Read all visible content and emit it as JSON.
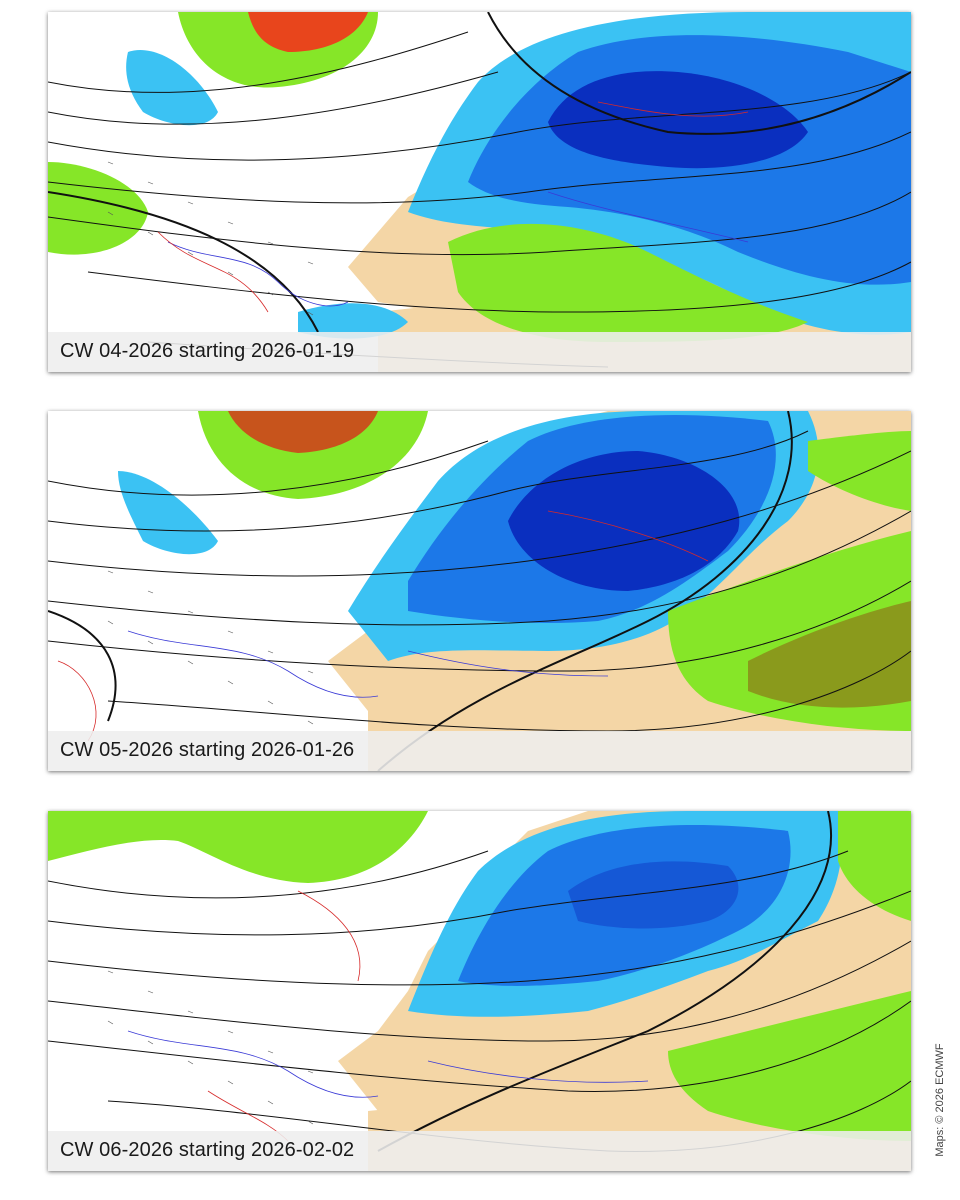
{
  "panels": [
    {
      "id": "cw04",
      "caption": "CW 04-2026 starting 2026-01-19"
    },
    {
      "id": "cw05",
      "caption": "CW 05-2026 starting 2026-01-26"
    },
    {
      "id": "cw06",
      "caption": "CW 06-2026 starting 2026-02-02"
    }
  ],
  "credit": "Maps: © 2026 ECMWF",
  "colors": {
    "strong_negative": "#0a2fbf",
    "negative": "#1c78e8",
    "weak_negative": "#3bc2f3",
    "positive": "#86e628",
    "strong_positive": "#e8451c",
    "land": "#f4d6a6",
    "ocean": "#ffffff",
    "isobars": "#111111",
    "blue_contours": "#3a3ad6",
    "red_contours": "#d62a2a"
  }
}
